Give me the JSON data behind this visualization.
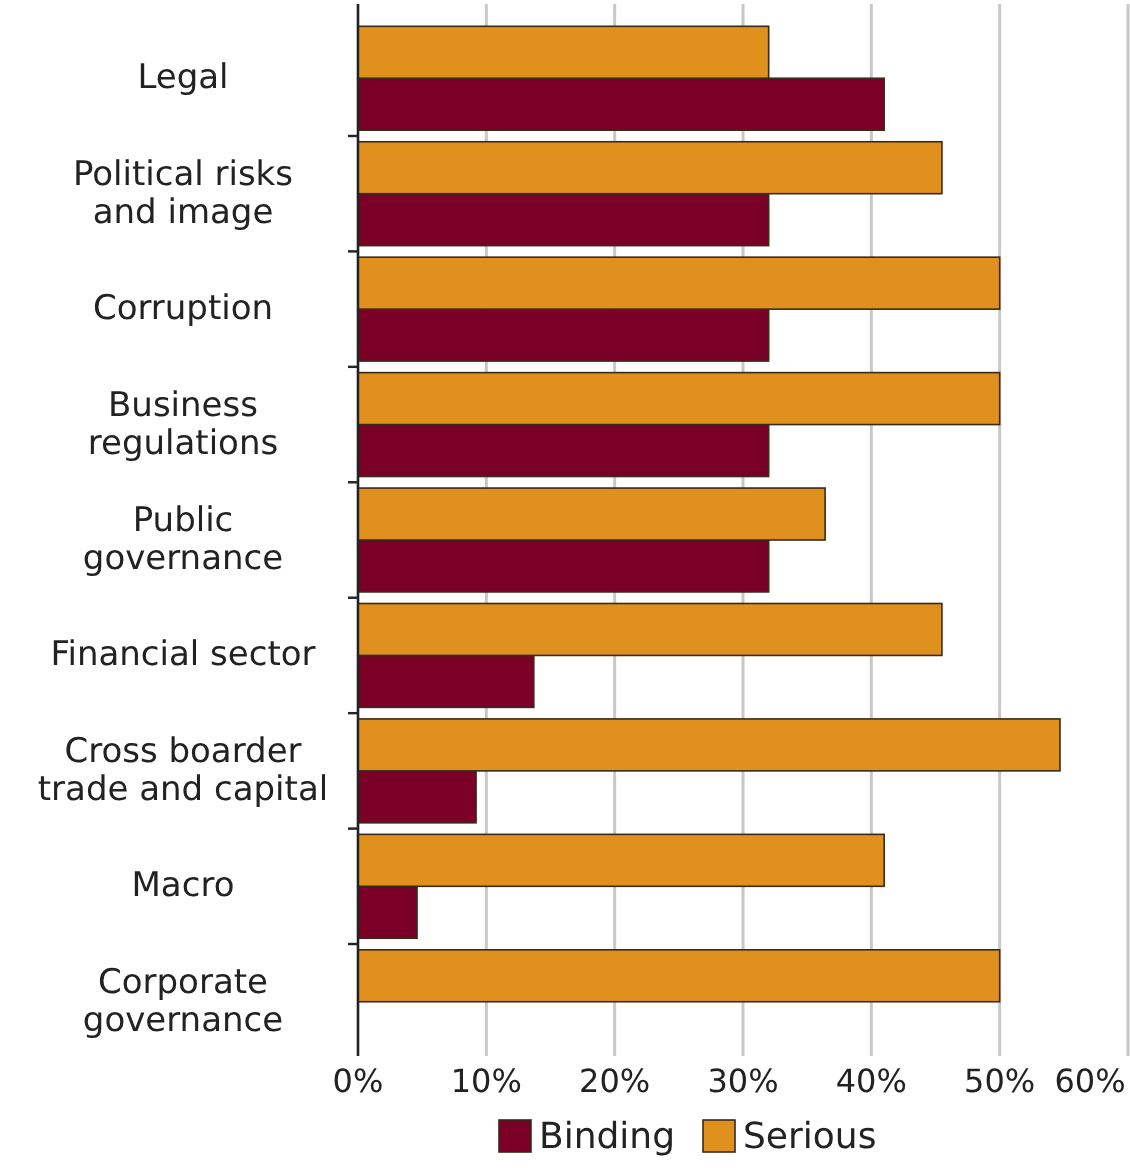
{
  "chart_data": {
    "type": "bar",
    "orientation": "horizontal",
    "categories": [
      "Legal",
      "Political risks and image",
      "Corruption",
      "Business regulations",
      "Public governance",
      "Financial sector",
      "Cross boarder trade and capital",
      "Macro",
      "Corporate governance"
    ],
    "series": [
      {
        "name": "Binding",
        "color": "#7b0028",
        "values": [
          41,
          32,
          32,
          32,
          32,
          13.7,
          9.2,
          4.6,
          0
        ]
      },
      {
        "name": "Serious",
        "color": "#e0901c",
        "values": [
          32,
          45.5,
          50,
          50,
          36.4,
          45.5,
          54.7,
          41,
          50
        ]
      }
    ],
    "xlim": [
      0,
      60
    ],
    "xticks": [
      {
        "value": 0,
        "label": "0%"
      },
      {
        "value": 10,
        "label": "10%"
      },
      {
        "value": 20,
        "label": "20%"
      },
      {
        "value": 30,
        "label": "30%"
      },
      {
        "value": 40,
        "label": "40%"
      },
      {
        "value": 50,
        "label": "50%"
      },
      {
        "value": 60,
        "label": "60%"
      }
    ],
    "grid": "x",
    "legend": "bottom"
  }
}
